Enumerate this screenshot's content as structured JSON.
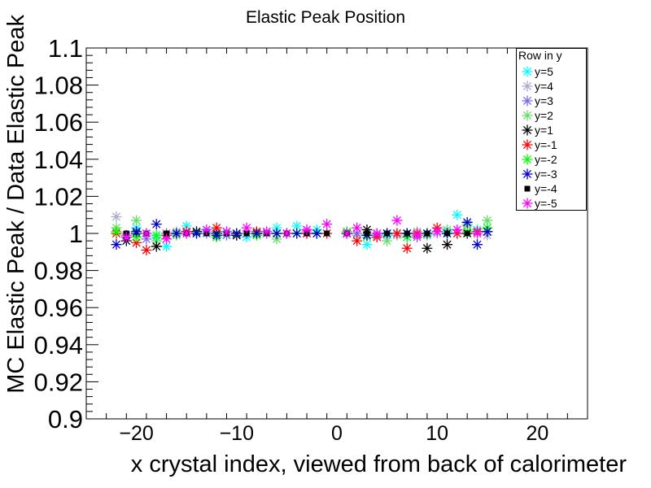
{
  "chart_data": {
    "type": "scatter",
    "title": "Elastic Peak Position",
    "xlabel": "x crystal index, viewed from back of calorimeter",
    "ylabel": "MC Elastic Peak / Data Elastic Peak",
    "xlim": [
      -25,
      25
    ],
    "ylim": [
      0.9,
      1.1
    ],
    "x_ticks": [
      "−20",
      "−10",
      "0",
      "10",
      "20"
    ],
    "y_ticks": [
      "0.9",
      "0.92",
      "0.94",
      "0.96",
      "0.98",
      "1",
      "1.02",
      "1.04",
      "1.06",
      "1.08",
      "1.1"
    ],
    "legend_title": "Row in y",
    "legend_position": "top-right",
    "grid": false,
    "series": [
      {
        "name": "y=5",
        "color": "#00ffff",
        "marker": "star",
        "x": [
          -20,
          -18,
          -17,
          -15,
          -13,
          -11,
          -9,
          -7,
          -6,
          -4,
          -2,
          1,
          3,
          5,
          7,
          9,
          11,
          12,
          14
        ],
        "y": [
          1.003,
          0.998,
          0.993,
          1.004,
          1.001,
          1.0,
          0.998,
          1.0,
          1.003,
          1.004,
          1.002,
          1.0,
          0.994,
          0.999,
          0.998,
          1.0,
          1.001,
          1.01,
          1.002
        ]
      },
      {
        "name": "y=4",
        "color": "#aaaacc",
        "marker": "star",
        "x": [
          -22,
          -21,
          -19,
          -16,
          -14,
          -12,
          -10,
          -8,
          -5,
          -3,
          2,
          4,
          6,
          8,
          10,
          13,
          15
        ],
        "y": [
          1.009,
          0.999,
          1.0,
          1.001,
          1.0,
          1.001,
          0.999,
          1.0,
          1.0,
          1.001,
          0.999,
          1.0,
          0.999,
          1.001,
          1.0,
          1.004,
          0.999
        ]
      },
      {
        "name": "y=3",
        "color": "#7b68ee",
        "marker": "star",
        "x": [
          -21,
          -19,
          -17,
          -15,
          -13,
          -11,
          -9,
          -7,
          -5,
          -3,
          2,
          4,
          6,
          8,
          10,
          12,
          14
        ],
        "y": [
          0.999,
          0.997,
          1.0,
          1.001,
          1.0,
          0.999,
          1.0,
          1.0,
          1.0,
          1.0,
          1.0,
          0.999,
          1.0,
          0.998,
          1.001,
          1.0,
          1.001
        ]
      },
      {
        "name": "y=2",
        "color": "#66dd66",
        "marker": "star",
        "x": [
          -22,
          -20,
          -18,
          -16,
          -14,
          -12,
          -10,
          -8,
          -6,
          -4,
          -2,
          1,
          3,
          5,
          7,
          9,
          11,
          13,
          15
        ],
        "y": [
          1.003,
          1.007,
          0.996,
          0.999,
          1.001,
          1.0,
          1.0,
          1.0,
          0.997,
          1.0,
          1.0,
          1.0,
          0.998,
          0.996,
          1.0,
          0.999,
          1.002,
          1.005,
          1.007
        ]
      },
      {
        "name": "y=1",
        "color": "#000000",
        "marker": "star",
        "x": [
          -21,
          -20,
          -18,
          -16,
          -14,
          -12,
          -10,
          -8,
          -6,
          -4,
          -2,
          1,
          3,
          5,
          7,
          9,
          11,
          13,
          15
        ],
        "y": [
          0.996,
          1.0,
          0.993,
          1.0,
          1.001,
          1.0,
          0.999,
          1.0,
          1.0,
          1.0,
          1.0,
          1.0,
          1.002,
          1.0,
          1.0,
          0.992,
          0.994,
          1.0,
          1.001
        ]
      },
      {
        "name": "y=-1",
        "color": "#ff0000",
        "marker": "star",
        "x": [
          -22,
          -20,
          -19,
          -17,
          -15,
          -12,
          -10,
          -8,
          -5,
          -3,
          -1,
          1,
          2,
          4,
          6,
          7,
          8,
          10,
          12,
          14
        ],
        "y": [
          1.0,
          0.995,
          0.991,
          0.999,
          1.001,
          1.003,
          1.0,
          1.001,
          1.0,
          1.0,
          1.0,
          1.0,
          0.996,
          0.998,
          1.0,
          0.992,
          1.0,
          1.003,
          1.0,
          1.001
        ]
      },
      {
        "name": "y=-2",
        "color": "#00ff00",
        "marker": "star",
        "x": [
          -22,
          -20,
          -18,
          -16,
          -14,
          -12,
          -10,
          -8,
          -6,
          -4,
          -2,
          1,
          3,
          5,
          7,
          9,
          11,
          13,
          15
        ],
        "y": [
          1.001,
          0.998,
          0.999,
          1.0,
          1.0,
          0.998,
          1.0,
          0.999,
          1.0,
          1.0,
          1.0,
          1.001,
          0.999,
          1.0,
          0.998,
          1.0,
          1.0,
          1.001,
          1.003
        ]
      },
      {
        "name": "y=-3",
        "color": "#0000cc",
        "marker": "star",
        "x": [
          -22,
          -20,
          -18,
          -16,
          -14,
          -12,
          -10,
          -8,
          -6,
          -4,
          -2,
          1,
          3,
          5,
          7,
          9,
          11,
          13,
          14,
          15
        ],
        "y": [
          0.994,
          1.001,
          1.005,
          1.0,
          1.0,
          0.999,
          1.0,
          1.0,
          1.0,
          1.0,
          1.0,
          1.0,
          0.999,
          1.0,
          1.0,
          1.0,
          1.0,
          1.006,
          0.994,
          1.001
        ]
      },
      {
        "name": "y=-4",
        "color": "#000000",
        "marker": "square",
        "x": [
          -21,
          -19,
          -17,
          -15,
          -13,
          -11,
          -9,
          -7,
          -5,
          -3,
          -1,
          1,
          3,
          5,
          7,
          9,
          11,
          13
        ],
        "y": [
          1.0,
          1.0,
          1.0,
          1.0,
          1.0,
          1.0,
          1.0,
          1.0,
          1.0,
          1.0,
          1.0,
          1.0,
          1.0,
          1.0,
          1.0,
          1.0,
          1.0,
          1.0
        ]
      },
      {
        "name": "y=-5",
        "color": "#ff00ff",
        "marker": "star",
        "x": [
          -21,
          -19,
          -17,
          -15,
          -13,
          -11,
          -9,
          -7,
          -5,
          -3,
          -1,
          1,
          2,
          4,
          6,
          8,
          10,
          12,
          14
        ],
        "y": [
          0.998,
          1.0,
          0.997,
          1.0,
          1.002,
          1.001,
          1.003,
          1.001,
          1.0,
          1.002,
          1.005,
          1.0,
          1.003,
          1.0,
          1.007,
          0.999,
          1.001,
          1.002,
          1.0
        ]
      }
    ]
  }
}
